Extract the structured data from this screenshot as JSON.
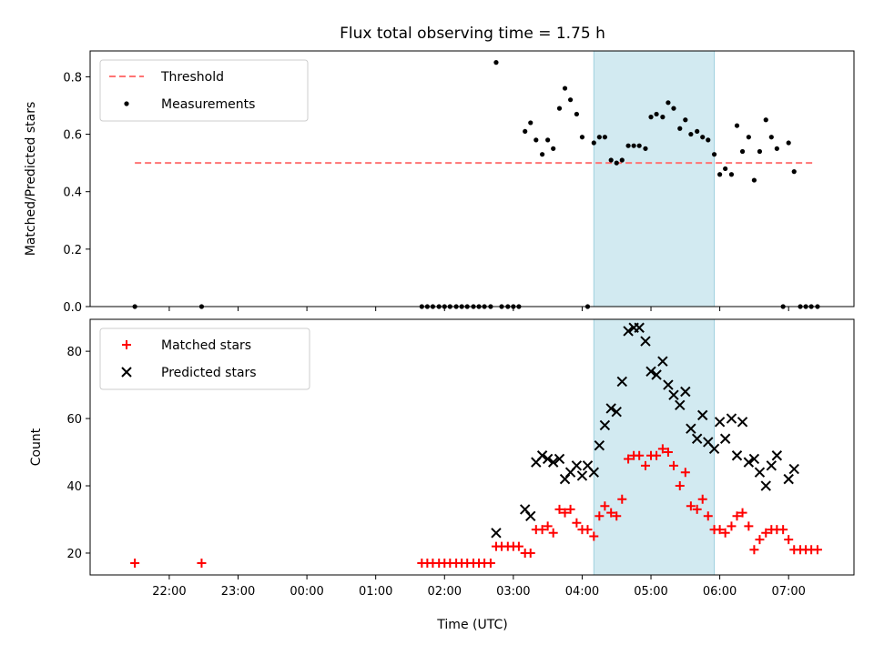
{
  "chart_data": {
    "type": "scatter",
    "title": "Flux total observing time = 1.75 h",
    "xlabel": "Time (UTC)",
    "x_tick_labels": [
      "22:00",
      "23:00",
      "00:00",
      "01:00",
      "02:00",
      "03:00",
      "04:00",
      "05:00",
      "06:00",
      "07:00"
    ],
    "x_tick_hours": [
      22,
      23,
      24,
      25,
      26,
      27,
      28,
      29,
      30,
      31
    ],
    "xlim_hours": [
      20.85,
      31.95
    ],
    "shaded_span_utc": [
      "04:10",
      "05:55"
    ],
    "shaded_span_hours": [
      28.17,
      29.92
    ],
    "shaded_color": "#add8e6",
    "panels": [
      {
        "id": "ratio",
        "ylabel": "Matched/Predicted stars",
        "ylim": [
          0,
          0.89
        ],
        "y_ticks": [
          0.0,
          0.2,
          0.4,
          0.6,
          0.8
        ],
        "y_tick_labels": [
          "0.0",
          "0.2",
          "0.4",
          "0.6",
          "0.8"
        ],
        "legend": {
          "placement": "upper left",
          "entries": [
            "Threshold",
            "Measurements"
          ]
        },
        "series": [
          {
            "name": "Threshold",
            "style": "dashed-line",
            "color": "#ff7373",
            "x": [
              21.5,
              31.38
            ],
            "y": [
              0.5,
              0.5
            ]
          },
          {
            "name": "Measurements",
            "style": "dot",
            "color": "#000000",
            "x": [
              21.5,
              22.47,
              25.67,
              25.75,
              25.83,
              25.92,
              26.0,
              26.08,
              26.17,
              26.25,
              26.33,
              26.42,
              26.5,
              26.58,
              26.67,
              26.75,
              26.83,
              26.92,
              27.0,
              27.08,
              27.17,
              27.25,
              27.33,
              27.42,
              27.5,
              27.58,
              27.67,
              27.75,
              27.83,
              27.92,
              28.0,
              28.08,
              28.17,
              28.25,
              28.33,
              28.42,
              28.5,
              28.58,
              28.67,
              28.75,
              28.83,
              28.92,
              29.0,
              29.08,
              29.17,
              29.25,
              29.33,
              29.42,
              29.5,
              29.58,
              29.67,
              29.75,
              29.83,
              29.92,
              30.0,
              30.08,
              30.17,
              30.25,
              30.33,
              30.42,
              30.5,
              30.58,
              30.67,
              30.75,
              30.83,
              30.92,
              31.0,
              31.08,
              31.17,
              31.25,
              31.33,
              31.42
            ],
            "y": [
              0.0,
              0.0,
              0.0,
              0.0,
              0.0,
              0.0,
              0.0,
              0.0,
              0.0,
              0.0,
              0.0,
              0.0,
              0.0,
              0.0,
              0.0,
              0.85,
              0.0,
              0.0,
              0.0,
              0.0,
              0.61,
              0.64,
              0.58,
              0.53,
              0.58,
              0.55,
              0.69,
              0.76,
              0.72,
              0.67,
              0.59,
              0.0,
              0.57,
              0.59,
              0.59,
              0.51,
              0.5,
              0.51,
              0.56,
              0.56,
              0.56,
              0.55,
              0.66,
              0.67,
              0.66,
              0.71,
              0.69,
              0.62,
              0.65,
              0.6,
              0.61,
              0.59,
              0.58,
              0.53,
              0.46,
              0.48,
              0.46,
              0.63,
              0.54,
              0.59,
              0.44,
              0.54,
              0.65,
              0.59,
              0.55,
              0.0,
              0.57,
              0.47,
              0.0,
              0.0,
              0.0,
              0.0
            ]
          }
        ]
      },
      {
        "id": "counts",
        "ylabel": "Count",
        "ylim": [
          13.5,
          89.5
        ],
        "y_ticks": [
          20,
          40,
          60,
          80
        ],
        "y_tick_labels": [
          "20",
          "40",
          "60",
          "80"
        ],
        "legend": {
          "placement": "upper left",
          "entries": [
            "Matched stars",
            "Predicted stars"
          ]
        },
        "series": [
          {
            "name": "Matched stars",
            "style": "plus",
            "color": "#ff0000",
            "x": [
              21.5,
              22.47,
              25.67,
              25.75,
              25.83,
              25.92,
              26.0,
              26.08,
              26.17,
              26.25,
              26.33,
              26.42,
              26.5,
              26.58,
              26.67,
              26.75,
              26.83,
              26.92,
              27.0,
              27.08,
              27.17,
              27.25,
              27.33,
              27.42,
              27.5,
              27.58,
              27.67,
              27.75,
              27.83,
              27.92,
              28.0,
              28.08,
              28.17,
              28.25,
              28.33,
              28.42,
              28.5,
              28.58,
              28.67,
              28.75,
              28.83,
              28.92,
              29.0,
              29.08,
              29.17,
              29.25,
              29.33,
              29.42,
              29.5,
              29.58,
              29.67,
              29.75,
              29.83,
              29.92,
              30.0,
              30.08,
              30.17,
              30.25,
              30.33,
              30.42,
              30.5,
              30.58,
              30.67,
              30.75,
              30.83,
              30.92,
              31.0,
              31.08,
              31.17,
              31.25,
              31.33,
              31.42
            ],
            "y": [
              17,
              17,
              17,
              17,
              17,
              17,
              17,
              17,
              17,
              17,
              17,
              17,
              17,
              17,
              17,
              22,
              22,
              22,
              22,
              22,
              20,
              20,
              27,
              27,
              28,
              26,
              33,
              32,
              33,
              29,
              27,
              27,
              25,
              31,
              34,
              32,
              31,
              36,
              48,
              49,
              49,
              46,
              49,
              49,
              51,
              50,
              46,
              40,
              44,
              34,
              33,
              36,
              31,
              27,
              27,
              26,
              28,
              31,
              32,
              28,
              21,
              24,
              26,
              27,
              27,
              27,
              24,
              21,
              21,
              21,
              21,
              21
            ]
          },
          {
            "name": "Predicted stars",
            "style": "x",
            "color": "#000000",
            "x": [
              26.75,
              27.17,
              27.25,
              27.33,
              27.42,
              27.5,
              27.58,
              27.67,
              27.75,
              27.83,
              27.92,
              28.0,
              28.08,
              28.17,
              28.25,
              28.33,
              28.42,
              28.5,
              28.58,
              28.67,
              28.75,
              28.83,
              28.92,
              29.0,
              29.08,
              29.17,
              29.25,
              29.33,
              29.42,
              29.5,
              29.58,
              29.67,
              29.75,
              29.83,
              29.92,
              30.0,
              30.08,
              30.17,
              30.25,
              30.33,
              30.42,
              30.5,
              30.58,
              30.67,
              30.75,
              30.83,
              31.0,
              31.08
            ],
            "y": [
              26,
              33,
              31,
              47,
              49,
              48,
              47,
              48,
              42,
              44,
              46,
              43,
              46,
              44,
              52,
              58,
              63,
              62,
              71,
              86,
              87,
              87,
              83,
              74,
              73,
              77,
              70,
              67,
              64,
              68,
              57,
              54,
              61,
              53,
              51,
              59,
              54,
              60,
              49,
              59,
              47,
              48,
              44,
              40,
              46,
              49,
              42,
              45
            ]
          }
        ]
      }
    ]
  }
}
